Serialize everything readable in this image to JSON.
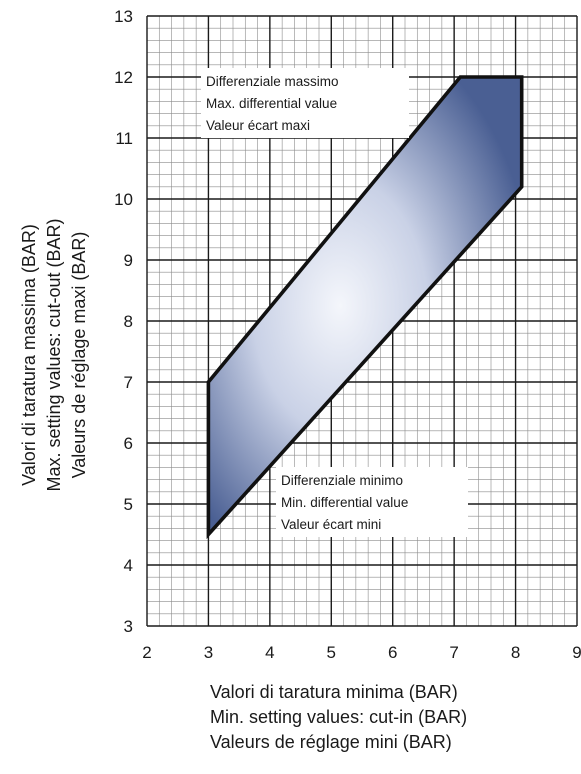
{
  "chart_data": {
    "type": "area",
    "xlabel": [
      "Valori di taratura minima (BAR)",
      "Min. setting values: cut-in (BAR)",
      "Valeurs de réglage mini (BAR)"
    ],
    "ylabel": [
      "Valori di taratura massima (BAR)",
      "Max. setting values: cut-out (BAR)",
      "Valeurs de réglage maxi (BAR)"
    ],
    "xlim": [
      2,
      9
    ],
    "ylim": [
      3,
      13
    ],
    "x_ticks": [
      "2",
      "3",
      "4",
      "5",
      "6",
      "7",
      "8",
      "9"
    ],
    "y_ticks": [
      "3",
      "4",
      "5",
      "6",
      "7",
      "8",
      "9",
      "10",
      "11",
      "12",
      "13"
    ],
    "grid": true,
    "minor_grid": true,
    "region": {
      "boundary": [
        {
          "x": 3,
          "y": 4.5
        },
        {
          "x": 3,
          "y": 7
        },
        {
          "x": 7.1,
          "y": 12
        },
        {
          "x": 8.1,
          "y": 12
        },
        {
          "x": 8.1,
          "y": 10.2
        }
      ],
      "fill_color_edge": "#4a5f93",
      "fill_color_center": "#f4f6fb",
      "stroke_color": "#111111"
    },
    "annotations": [
      {
        "name": "max-differential",
        "lines": [
          "Differenziale massimo",
          "Max. differential value",
          "Valeur écart maxi"
        ]
      },
      {
        "name": "min-differential",
        "lines": [
          "Differenziale minimo",
          "Min. differential value",
          "Valeur écart mini"
        ]
      }
    ]
  }
}
